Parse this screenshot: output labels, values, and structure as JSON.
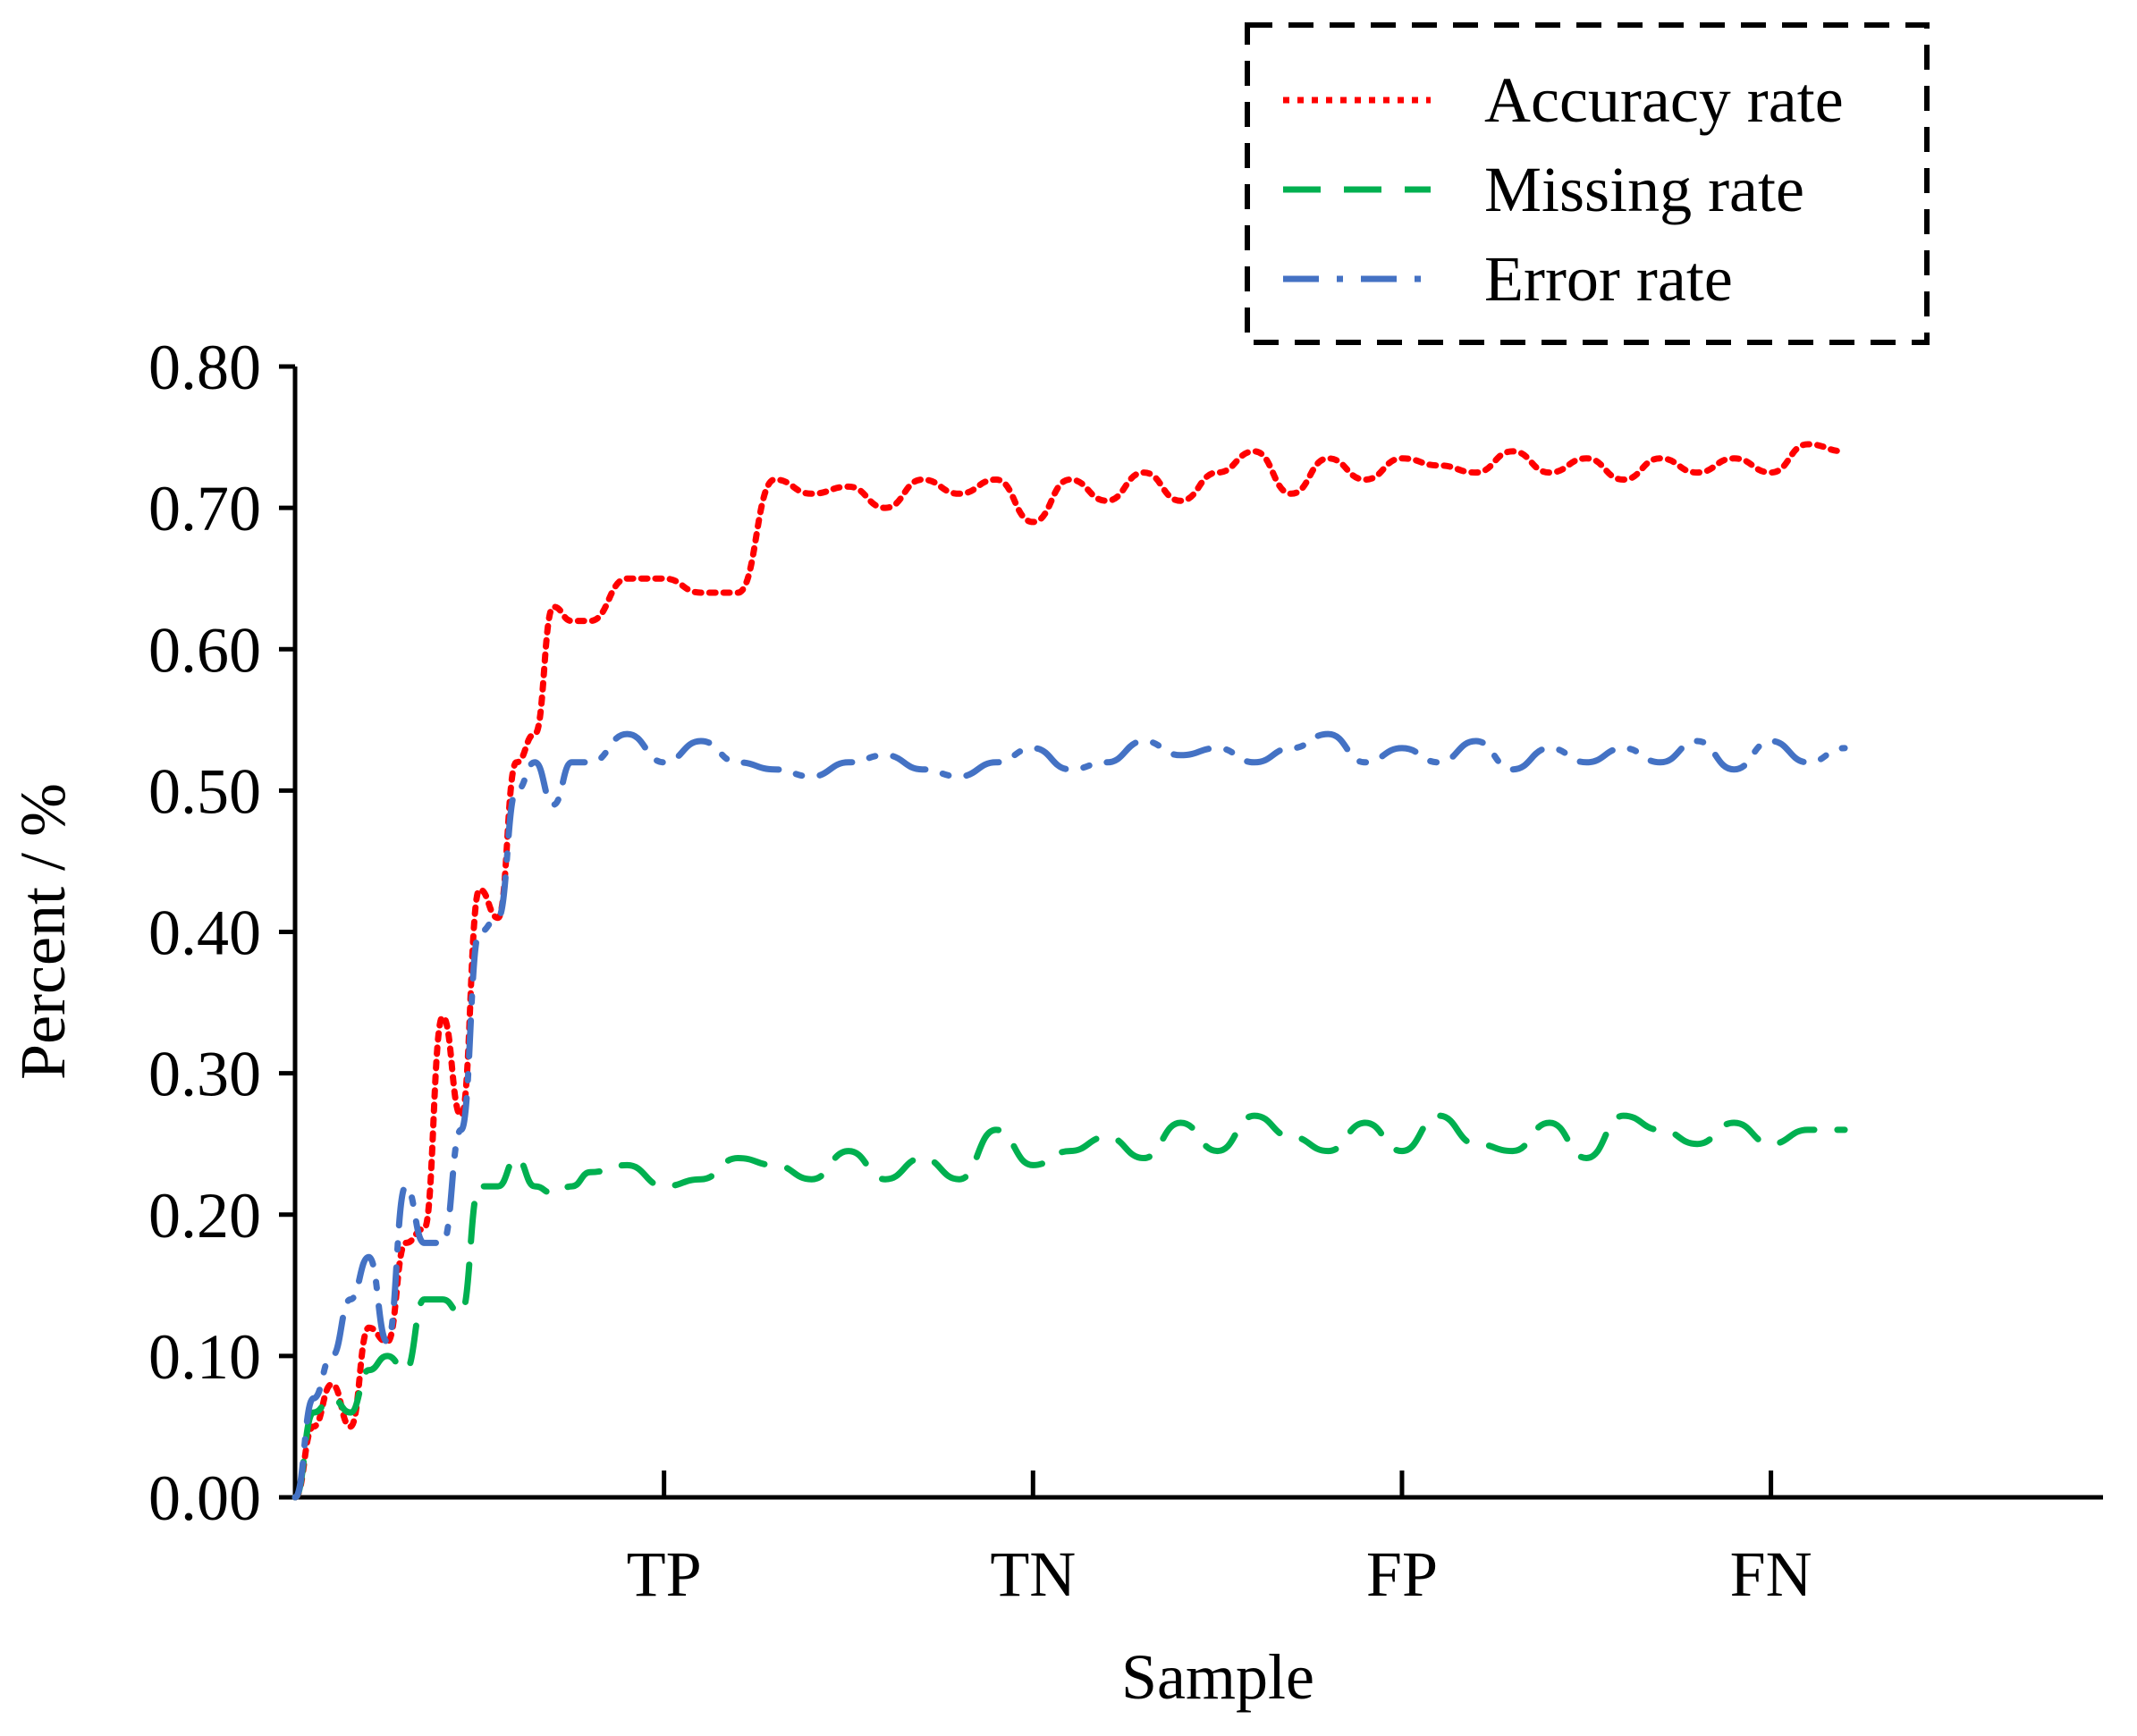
{
  "chart_data": {
    "type": "line",
    "title": "",
    "xlabel": "Sample",
    "ylabel": "Percent / %",
    "xlim": [
      0,
      4.9
    ],
    "ylim": [
      0,
      0.8
    ],
    "yticks": [
      "0.00",
      "0.10",
      "0.20",
      "0.30",
      "0.40",
      "0.50",
      "0.60",
      "0.70",
      "0.80"
    ],
    "categories": [
      "TP",
      "TN",
      "FP",
      "FN"
    ],
    "category_positions": [
      1,
      2,
      3,
      4
    ],
    "legend_position": "top-right",
    "series": [
      {
        "name": "Accuracy rate",
        "color": "#ff0000",
        "style": "dotted",
        "x": [
          0.0,
          0.05,
          0.1,
          0.15,
          0.2,
          0.25,
          0.3,
          0.35,
          0.4,
          0.45,
          0.5,
          0.55,
          0.6,
          0.65,
          0.7,
          0.75,
          0.8,
          0.9,
          1.0,
          1.1,
          1.2,
          1.3,
          1.4,
          1.5,
          1.6,
          1.7,
          1.8,
          1.9,
          2.0,
          2.1,
          2.2,
          2.3,
          2.4,
          2.5,
          2.6,
          2.7,
          2.8,
          2.9,
          3.0,
          3.1,
          3.2,
          3.3,
          3.4,
          3.5,
          3.6,
          3.7,
          3.8,
          3.9,
          4.0,
          4.1,
          4.2
        ],
        "values": [
          0.0,
          0.05,
          0.08,
          0.05,
          0.12,
          0.11,
          0.18,
          0.19,
          0.34,
          0.27,
          0.43,
          0.41,
          0.52,
          0.54,
          0.63,
          0.62,
          0.62,
          0.65,
          0.65,
          0.64,
          0.64,
          0.72,
          0.71,
          0.715,
          0.7,
          0.72,
          0.71,
          0.72,
          0.69,
          0.72,
          0.705,
          0.725,
          0.705,
          0.725,
          0.74,
          0.71,
          0.735,
          0.72,
          0.735,
          0.73,
          0.725,
          0.74,
          0.725,
          0.735,
          0.72,
          0.735,
          0.725,
          0.735,
          0.725,
          0.745,
          0.74
        ]
      },
      {
        "name": "Missing rate",
        "color": "#00b050",
        "style": "dashed",
        "x": [
          0.0,
          0.05,
          0.1,
          0.15,
          0.2,
          0.25,
          0.3,
          0.35,
          0.4,
          0.45,
          0.5,
          0.55,
          0.6,
          0.65,
          0.7,
          0.75,
          0.8,
          0.9,
          1.0,
          1.1,
          1.2,
          1.3,
          1.4,
          1.5,
          1.6,
          1.7,
          1.8,
          1.9,
          2.0,
          2.1,
          2.2,
          2.3,
          2.4,
          2.5,
          2.6,
          2.7,
          2.8,
          2.9,
          3.0,
          3.1,
          3.2,
          3.3,
          3.4,
          3.5,
          3.6,
          3.7,
          3.8,
          3.9,
          4.0,
          4.1,
          4.2
        ],
        "values": [
          0.0,
          0.06,
          0.07,
          0.06,
          0.09,
          0.1,
          0.09,
          0.14,
          0.14,
          0.13,
          0.22,
          0.22,
          0.24,
          0.22,
          0.215,
          0.22,
          0.23,
          0.235,
          0.22,
          0.225,
          0.24,
          0.235,
          0.225,
          0.245,
          0.225,
          0.24,
          0.225,
          0.26,
          0.235,
          0.245,
          0.255,
          0.24,
          0.265,
          0.245,
          0.27,
          0.255,
          0.245,
          0.265,
          0.245,
          0.27,
          0.25,
          0.245,
          0.265,
          0.24,
          0.27,
          0.26,
          0.25,
          0.265,
          0.25,
          0.26,
          0.26
        ]
      },
      {
        "name": "Error rate",
        "color": "#4472c4",
        "style": "dash-dot",
        "x": [
          0.0,
          0.05,
          0.1,
          0.15,
          0.2,
          0.25,
          0.3,
          0.35,
          0.4,
          0.45,
          0.5,
          0.55,
          0.6,
          0.65,
          0.7,
          0.75,
          0.8,
          0.9,
          1.0,
          1.1,
          1.2,
          1.3,
          1.4,
          1.5,
          1.6,
          1.7,
          1.8,
          1.9,
          2.0,
          2.1,
          2.2,
          2.3,
          2.4,
          2.5,
          2.6,
          2.7,
          2.8,
          2.9,
          3.0,
          3.1,
          3.2,
          3.3,
          3.4,
          3.5,
          3.6,
          3.7,
          3.8,
          3.9,
          4.0,
          4.1,
          4.2
        ],
        "values": [
          0.0,
          0.07,
          0.1,
          0.14,
          0.17,
          0.11,
          0.22,
          0.18,
          0.18,
          0.26,
          0.4,
          0.41,
          0.5,
          0.52,
          0.49,
          0.52,
          0.52,
          0.54,
          0.52,
          0.535,
          0.52,
          0.515,
          0.51,
          0.52,
          0.525,
          0.515,
          0.51,
          0.52,
          0.53,
          0.515,
          0.52,
          0.535,
          0.525,
          0.53,
          0.52,
          0.53,
          0.54,
          0.52,
          0.53,
          0.52,
          0.535,
          0.515,
          0.53,
          0.52,
          0.53,
          0.52,
          0.535,
          0.515,
          0.535,
          0.52,
          0.53
        ]
      }
    ]
  }
}
